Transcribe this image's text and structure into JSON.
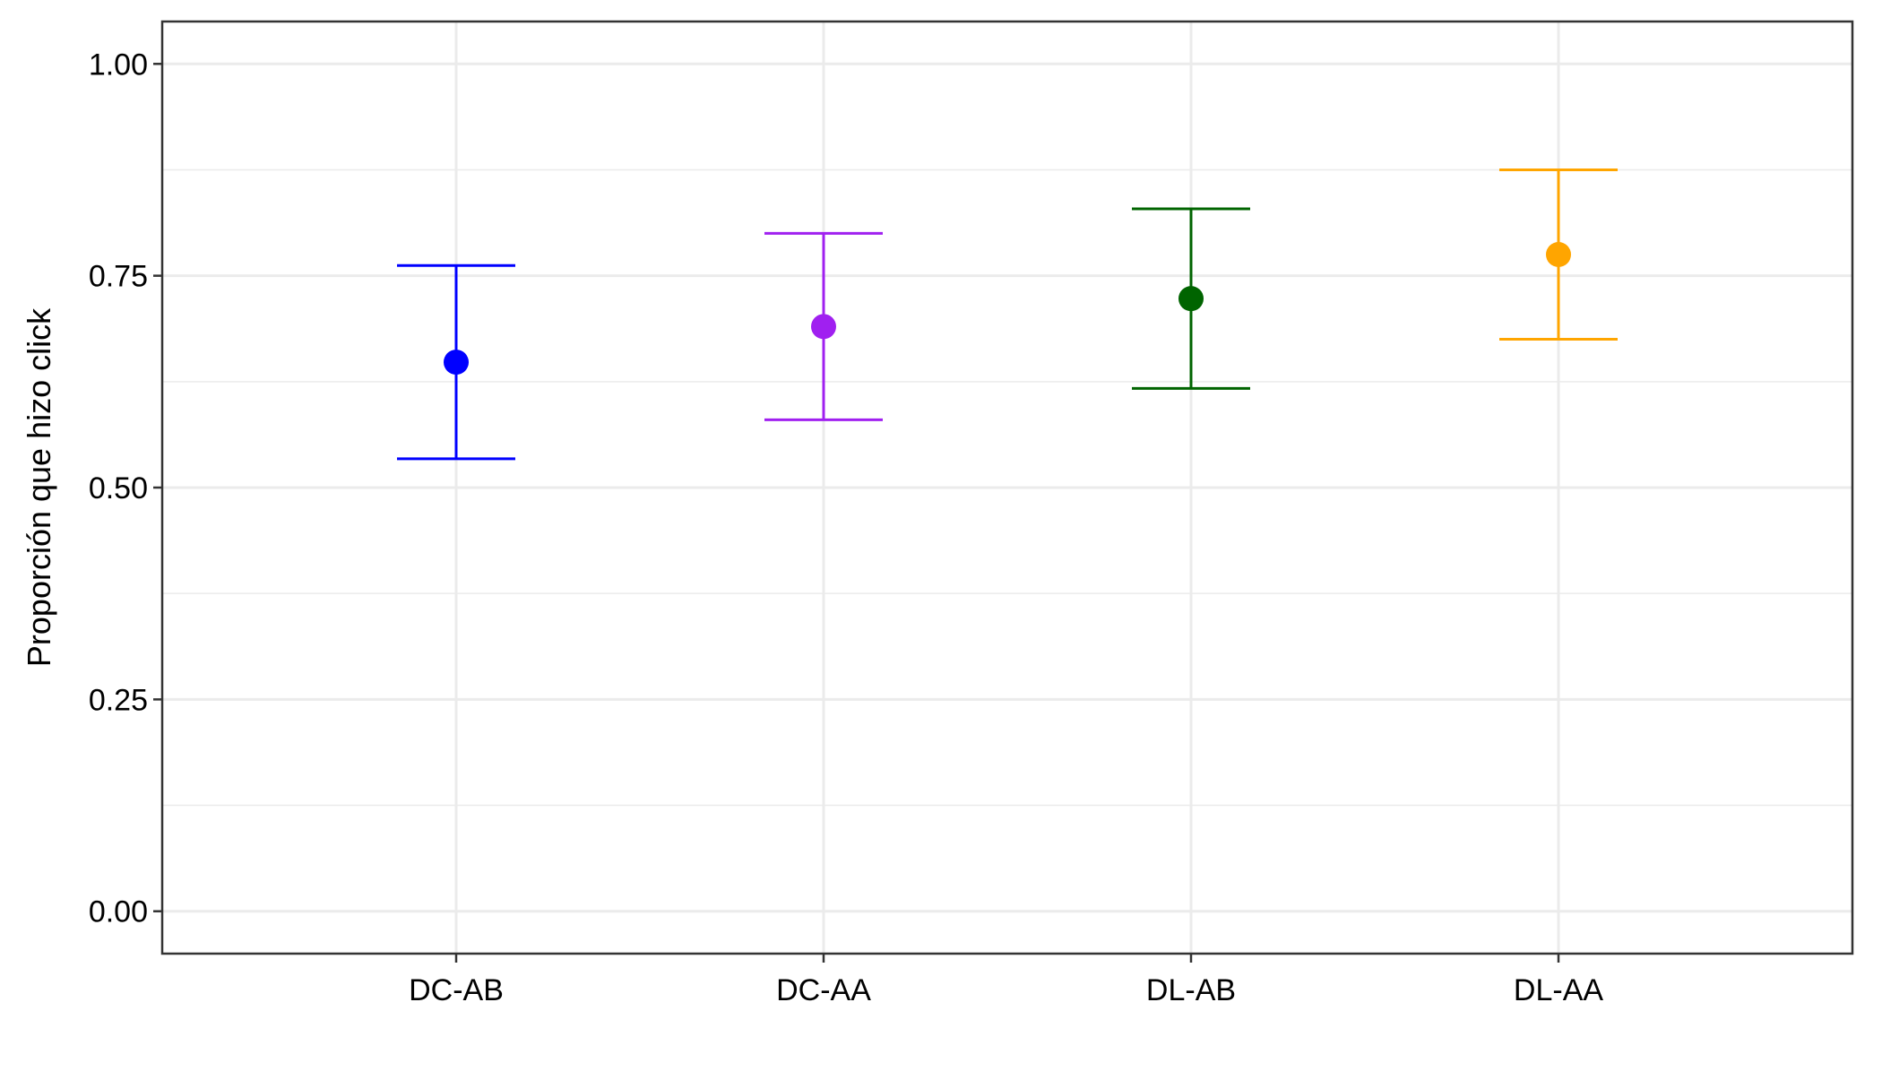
{
  "chart_data": {
    "type": "scatter",
    "title": "",
    "xlabel": "",
    "ylabel": "Proporción que hizo click",
    "categories": [
      "DC-AB",
      "DC-AA",
      "DL-AB",
      "DL-AA"
    ],
    "points": [
      {
        "category": "DC-AB",
        "y": 0.648,
        "lower": 0.534,
        "upper": 0.762,
        "color": "#0000FF"
      },
      {
        "category": "DC-AA",
        "y": 0.69,
        "lower": 0.58,
        "upper": 0.8,
        "color": "#A020F0"
      },
      {
        "category": "DL-AB",
        "y": 0.723,
        "lower": 0.617,
        "upper": 0.829,
        "color": "#006400"
      },
      {
        "category": "DL-AA",
        "y": 0.775,
        "lower": 0.675,
        "upper": 0.875,
        "color": "#FFA500"
      }
    ],
    "ylim": [
      -0.05,
      1.05
    ],
    "y_ticks": [
      0.0,
      0.25,
      0.5,
      0.75,
      1.0
    ],
    "y_tick_labels": [
      "0.00",
      "0.25",
      "0.50",
      "0.75",
      "1.00"
    ],
    "grid": true,
    "legend": "none"
  }
}
